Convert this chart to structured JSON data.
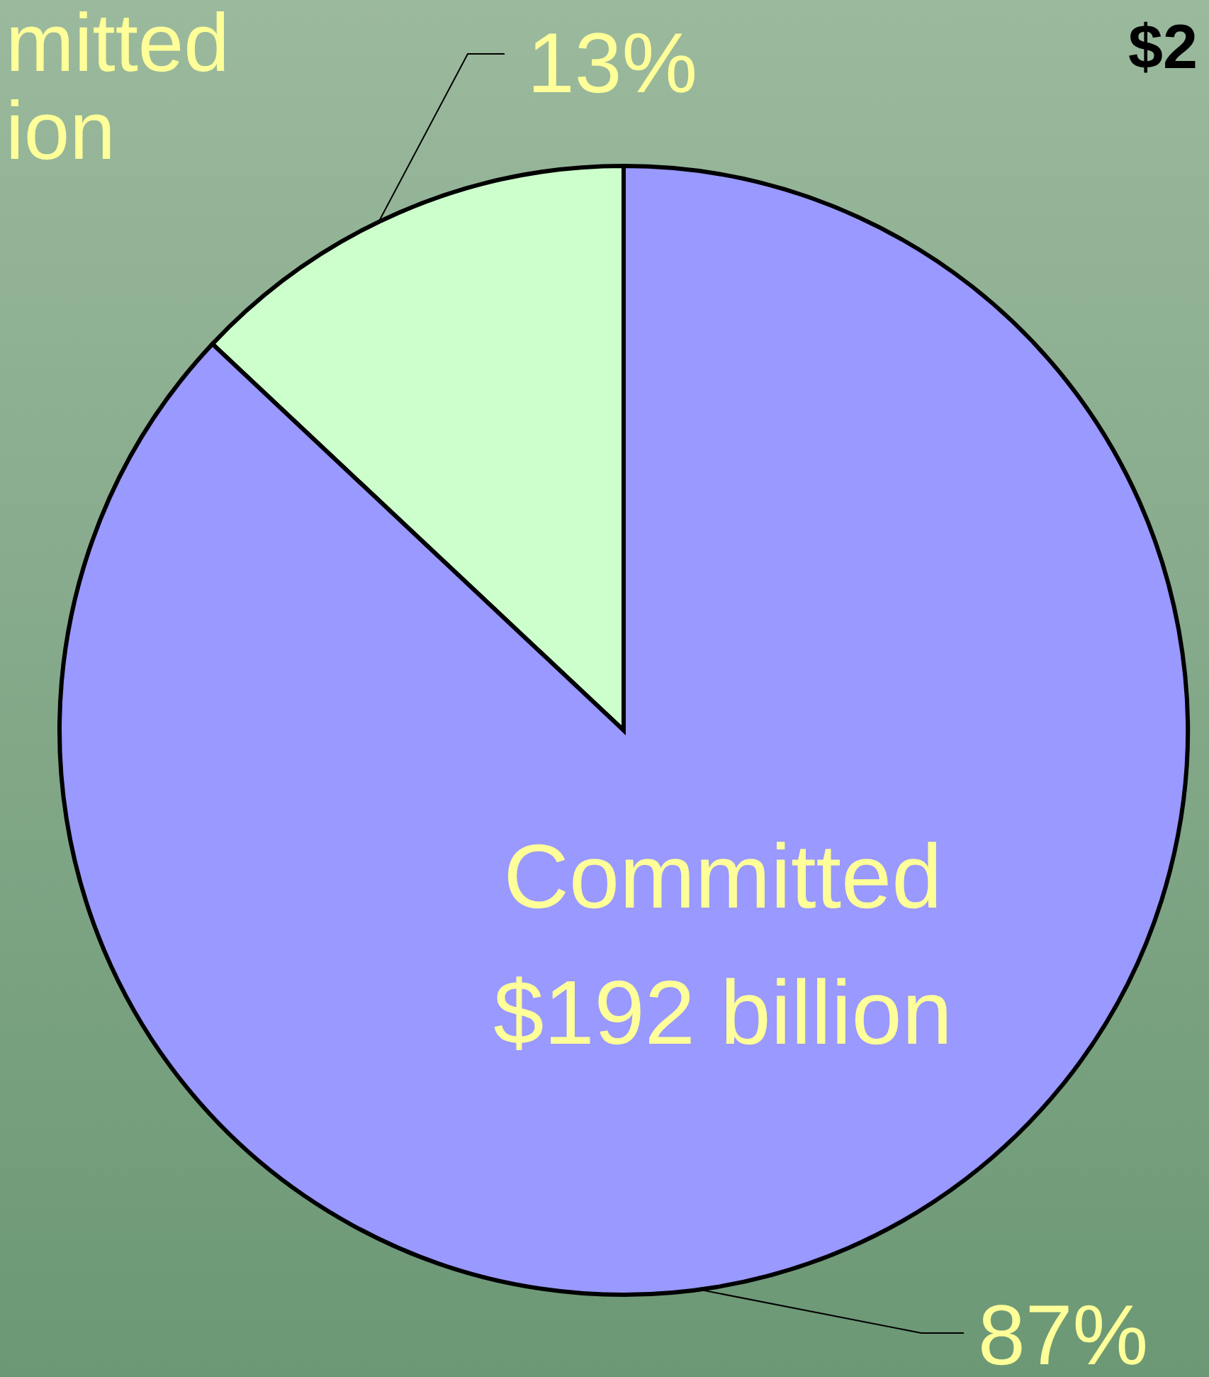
{
  "chart_data": {
    "type": "pie",
    "title": "$2",
    "categories": [
      "mitted\nion",
      "Committed\n$192 billion"
    ],
    "values": [
      13,
      87
    ],
    "colors": [
      "#ccffcc",
      "#9999ff"
    ],
    "value_labels": [
      "13%",
      "87%"
    ]
  }
}
